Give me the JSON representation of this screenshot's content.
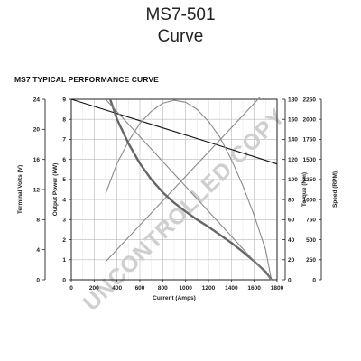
{
  "page": {
    "title_line1": "MS7-501",
    "title_line2": "Curve"
  },
  "chart_data": {
    "type": "line",
    "title": "MS7 TYPICAL PERFORMANCE CURVE",
    "watermark": "UNCONTROLLED COPY",
    "xlabel": "Current (Amps)",
    "xlim": [
      0,
      1800
    ],
    "x_ticks": [
      0,
      200,
      400,
      600,
      800,
      1000,
      1200,
      1400,
      1600,
      1800
    ],
    "grid": true,
    "axes": {
      "power": {
        "label": "Output Power (kW)",
        "lim": [
          0,
          9
        ],
        "ticks": [
          0,
          1,
          2,
          3,
          4,
          5,
          6,
          7,
          8,
          9
        ]
      },
      "volts": {
        "label": "Terminal Volts (V)",
        "lim": [
          0,
          24
        ],
        "ticks": [
          0,
          4,
          8,
          12,
          16,
          20,
          24
        ]
      },
      "torque": {
        "label": "Torque (Nm)",
        "lim": [
          0,
          180
        ],
        "ticks": [
          0,
          20,
          40,
          60,
          80,
          100,
          120,
          140,
          160,
          180
        ]
      },
      "speed": {
        "label": "Speed (RPM)",
        "lim": [
          0,
          2250
        ],
        "ticks": [
          0,
          250,
          500,
          750,
          1000,
          1250,
          1500,
          1750,
          2000,
          2250
        ]
      }
    },
    "series": [
      {
        "axis": "volts",
        "color": "#111111",
        "x": [
          0,
          400,
          800,
          1200,
          1800
        ],
        "y": [
          24,
          22.1,
          20.2,
          18.3,
          15.4
        ]
      },
      {
        "axis": "power",
        "color": "#8a8a8a",
        "x": [
          300,
          400,
          500,
          600,
          700,
          800,
          900,
          1000,
          1100,
          1200,
          1300,
          1400,
          1500,
          1600,
          1700,
          1750
        ],
        "y": [
          4.3,
          5.8,
          6.9,
          7.8,
          8.4,
          8.8,
          8.95,
          8.85,
          8.5,
          7.9,
          7.1,
          6.0,
          4.7,
          3.2,
          1.5,
          0
        ]
      },
      {
        "axis": "torque",
        "color": "#8a8a8a",
        "x": [
          300,
          1650
        ],
        "y": [
          18,
          182
        ]
      },
      {
        "axis": "speed",
        "color": "#666666",
        "x": [
          340,
          400,
          500,
          600,
          700,
          800,
          900,
          1000,
          1100,
          1200,
          1300,
          1400,
          1500,
          1600,
          1700,
          1750
        ],
        "y": [
          2250,
          2000,
          1700,
          1450,
          1250,
          1090,
          960,
          850,
          750,
          660,
          560,
          460,
          350,
          230,
          100,
          0
        ]
      },
      {
        "axis": "torque",
        "color": "#8a8a8a",
        "x": [
          300,
          1750
        ],
        "y": [
          180,
          0
        ]
      }
    ]
  }
}
